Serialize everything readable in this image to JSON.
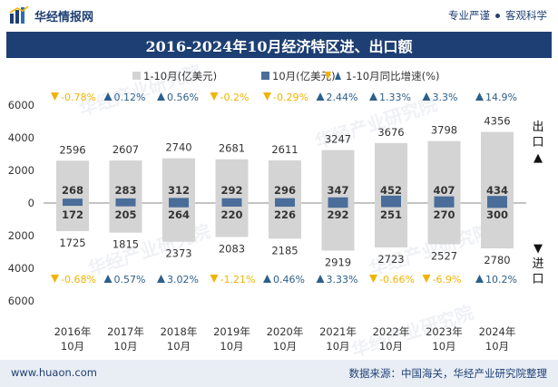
{
  "header": {
    "brand_name": "华经情报网",
    "tagline_left": "专业严谨",
    "tagline_right": "客观科学"
  },
  "footer": {
    "url": "www.huaon.com",
    "source": "数据来源：中国海关，华经产业研究院整理"
  },
  "watermark": "华经产业研究院",
  "colors": {
    "brand": "#1e3f73",
    "cumulative_bar": "#d4d4d4",
    "monthly_bar": "#4a6d99",
    "up": "#2c5f8a",
    "down": "#f0b400"
  },
  "chart_data": {
    "type": "bar",
    "title": "2016-2024年10月经济特区进、出口额",
    "categories": [
      "2016年\n10月",
      "2017年\n10月",
      "2018年\n10月",
      "2019年\n10月",
      "2020年\n10月",
      "2021年\n10月",
      "2022年\n10月",
      "2023年\n10月",
      "2024年\n10月"
    ],
    "legend": [
      "1-10月(亿美元)",
      "10月(亿美元)",
      "1-10月同比增速(%)"
    ],
    "axis_labels": {
      "export": "出口▲",
      "import": "▼进口"
    },
    "ylim": [
      -6000,
      6000
    ],
    "yticks": [
      6000,
      4000,
      2000,
      0,
      2000,
      4000,
      6000
    ],
    "series": [
      {
        "name": "1-10月出口(亿美元)",
        "values": [
          2596,
          2607,
          2740,
          2681,
          2611,
          3247,
          3676,
          3798,
          4356
        ]
      },
      {
        "name": "10月出口(亿美元)",
        "values": [
          268,
          283,
          312,
          292,
          296,
          347,
          452,
          407,
          434
        ]
      },
      {
        "name": "1-10月进口(亿美元)",
        "values": [
          1725,
          1815,
          2373,
          2083,
          2185,
          2919,
          2723,
          2527,
          2780
        ]
      },
      {
        "name": "10月进口(亿美元)",
        "values": [
          172,
          205,
          264,
          220,
          226,
          292,
          251,
          270,
          300
        ]
      }
    ],
    "export_growth": [
      {
        "dir": "down",
        "label": "-0.78%"
      },
      {
        "dir": "up",
        "label": "0.12%"
      },
      {
        "dir": "up",
        "label": "0.56%"
      },
      {
        "dir": "down",
        "label": "-0.2%"
      },
      {
        "dir": "down",
        "label": "-0.29%"
      },
      {
        "dir": "up",
        "label": "2.44%"
      },
      {
        "dir": "up",
        "label": "1.33%"
      },
      {
        "dir": "up",
        "label": "3.3%"
      },
      {
        "dir": "up",
        "label": "14.9%"
      }
    ],
    "import_growth": [
      {
        "dir": "down",
        "label": "-0.68%"
      },
      {
        "dir": "up",
        "label": "0.57%"
      },
      {
        "dir": "up",
        "label": "3.02%"
      },
      {
        "dir": "down",
        "label": "-1.21%"
      },
      {
        "dir": "up",
        "label": "0.46%"
      },
      {
        "dir": "up",
        "label": "3.33%"
      },
      {
        "dir": "down",
        "label": "-0.66%"
      },
      {
        "dir": "down",
        "label": "-6.9%"
      },
      {
        "dir": "up",
        "label": "10.2%"
      }
    ]
  }
}
